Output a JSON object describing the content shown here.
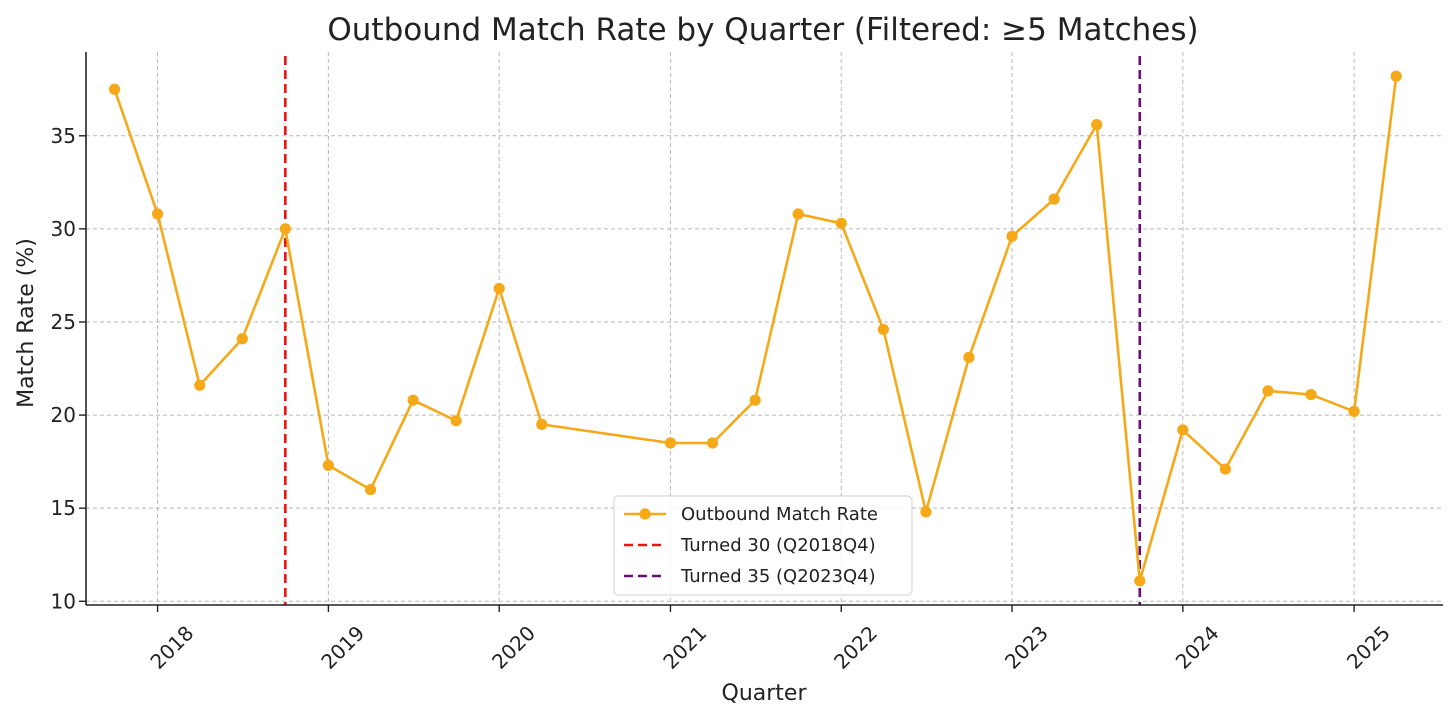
{
  "chart_data": {
    "type": "line",
    "title": "Outbound Match Rate by Quarter (Filtered: ≥5 Matches)",
    "xlabel": "Quarter",
    "ylabel": "Match Rate (%)",
    "x_ticks": [
      "2018",
      "2019",
      "2020",
      "2021",
      "2022",
      "2023",
      "2024",
      "2025"
    ],
    "y_ticks": [
      "10",
      "15",
      "20",
      "25",
      "30",
      "35"
    ],
    "xlim": [
      "2017-08-01",
      "2025-07-10"
    ],
    "ylim": [
      9.8,
      39.5
    ],
    "grid": true,
    "legend_position": "lower-center",
    "series": [
      {
        "name": "Outbound Match Rate",
        "color": "#f5a918",
        "marker": "circle",
        "points": [
          {
            "x": "2017-10-01",
            "y": 37.5
          },
          {
            "x": "2018-01-01",
            "y": 30.8
          },
          {
            "x": "2018-04-01",
            "y": 21.6
          },
          {
            "x": "2018-07-01",
            "y": 24.1
          },
          {
            "x": "2018-10-01",
            "y": 30.0
          },
          {
            "x": "2019-01-01",
            "y": 17.3
          },
          {
            "x": "2019-04-01",
            "y": 16.0
          },
          {
            "x": "2019-07-01",
            "y": 20.8
          },
          {
            "x": "2019-10-01",
            "y": 19.7
          },
          {
            "x": "2020-01-01",
            "y": 26.8
          },
          {
            "x": "2020-04-01",
            "y": 19.5
          },
          {
            "x": "2021-01-01",
            "y": 18.5
          },
          {
            "x": "2021-04-01",
            "y": 18.5
          },
          {
            "x": "2021-07-01",
            "y": 20.8
          },
          {
            "x": "2021-10-01",
            "y": 30.8
          },
          {
            "x": "2022-01-01",
            "y": 30.3
          },
          {
            "x": "2022-04-01",
            "y": 24.6
          },
          {
            "x": "2022-07-01",
            "y": 14.8
          },
          {
            "x": "2022-10-01",
            "y": 23.1
          },
          {
            "x": "2023-01-01",
            "y": 29.6
          },
          {
            "x": "2023-04-01",
            "y": 31.6
          },
          {
            "x": "2023-07-01",
            "y": 35.6
          },
          {
            "x": "2023-10-01",
            "y": 11.1
          },
          {
            "x": "2024-01-01",
            "y": 19.2
          },
          {
            "x": "2024-04-01",
            "y": 17.1
          },
          {
            "x": "2024-07-01",
            "y": 21.3
          },
          {
            "x": "2024-10-01",
            "y": 21.1
          },
          {
            "x": "2025-01-01",
            "y": 20.2
          },
          {
            "x": "2025-04-01",
            "y": 38.2
          }
        ]
      }
    ],
    "reference_lines": [
      {
        "name": "Turned 30 (Q2018Q4)",
        "x": "2018-10-01",
        "color": "#ee1111",
        "style": "dashed"
      },
      {
        "name": "Turned 35 (Q2023Q4)",
        "x": "2023-10-01",
        "color": "#6a0d75",
        "style": "dashed"
      }
    ]
  }
}
